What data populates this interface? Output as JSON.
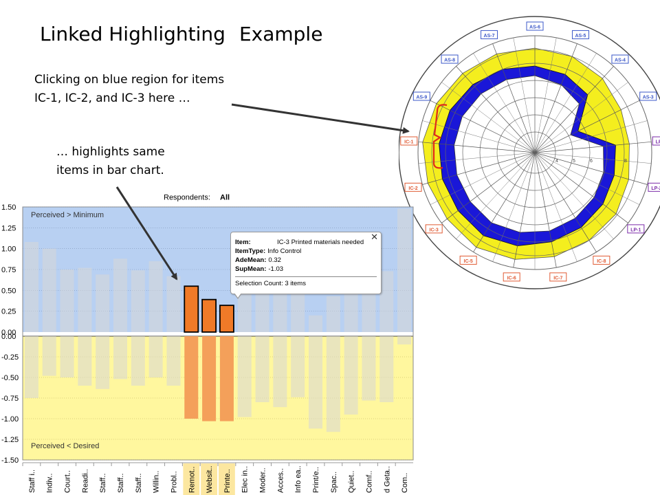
{
  "slide": {
    "title_part1": "Linked Highlighting",
    "title_part2": "Example",
    "callout_1_line1": "Clicking on blue region for items",
    "callout_1_line2": "IC-1, IC-2, and IC-3 here …",
    "callout_2_line1": "… highlights same",
    "callout_2_line2": "items in bar chart."
  },
  "respondents": {
    "label": "Respondents:",
    "value": "All"
  },
  "bar_chart": {
    "top_region_label": "Perceived > Minimum",
    "bottom_region_label": "Perceived < Desired",
    "colors": {
      "top_bg": "#b8d0f2",
      "bottom_bg": "#fff79e",
      "ghost_bar": "#d7d7d7",
      "highlight_bar": "#f07a28",
      "highlight_bar_light": "#f4a05a"
    }
  },
  "tooltip": {
    "item_label": "Item:",
    "item_value": "IC-3 Printed materials needed",
    "type_label": "ItemType:",
    "type_value": "Info Control",
    "ade_label": "AdeMean:",
    "ade_value": "0.32",
    "sup_label": "SupMean:",
    "sup_value": "-1.03",
    "selection_text": "Selection Count: 3 items",
    "close_glyph": "✕"
  },
  "chart_data": {
    "type": "bar",
    "ylim": [
      -1.5,
      1.5
    ],
    "yticks": [
      "1.50",
      "1.25",
      "1.00",
      "0.75",
      "0.50",
      "0.25",
      "0.00",
      "0.00",
      "-0.25",
      "-0.50",
      "-0.75",
      "-1.00",
      "-1.25",
      "-1.50"
    ],
    "categories": [
      "Staff i..",
      "Indiv..",
      "Court..",
      "Readi..",
      "Staff..",
      "Staff..",
      "Staff..",
      "Willin..",
      "Probl..",
      "Remot..",
      "Websit..",
      "Printe..",
      "Elec in..",
      "Moder..",
      "Acces..",
      "Info ea..",
      "Print/e..",
      "Spac..",
      "Quiet..",
      "Comf..",
      "d Geta..",
      "Com.."
    ],
    "series": [
      {
        "values": [
          1.08,
          1.0,
          0.75,
          0.77,
          0.69,
          0.88,
          0.74,
          0.85,
          0.67,
          0.55,
          0.39,
          0.32,
          0.5,
          0.5,
          0.5,
          0.5,
          0.2,
          0.43,
          0.5,
          0.5,
          0.73,
          1.48
        ]
      },
      {
        "values": [
          -0.75,
          -0.48,
          -0.5,
          -0.6,
          -0.64,
          -0.52,
          -0.6,
          -0.5,
          -0.6,
          -1.0,
          -1.03,
          -1.03,
          -0.98,
          -0.8,
          -0.86,
          -0.74,
          -1.12,
          -1.16,
          -0.95,
          -0.78,
          -0.8,
          -0.1
        ]
      }
    ],
    "highlighted": [
      "Remot..",
      "Websit..",
      "Printe.."
    ]
  },
  "radar": {
    "ring_labels": [
      "4",
      "5",
      "6",
      "7",
      "8"
    ],
    "labels": [
      {
        "text": "AS-6",
        "color": "#3b57c8"
      },
      {
        "text": "AS-5",
        "color": "#3b57c8"
      },
      {
        "text": "AS-4",
        "color": "#3b57c8"
      },
      {
        "text": "AS-3",
        "color": "#3b57c8"
      },
      {
        "text": "LP-3",
        "color": "#7a2aa8"
      },
      {
        "text": "LP-2",
        "color": "#7a2aa8"
      },
      {
        "text": "LP-1",
        "color": "#7a2aa8"
      },
      {
        "text": "IC-8",
        "color": "#e05a33"
      },
      {
        "text": "IC-7",
        "color": "#e05a33"
      },
      {
        "text": "IC-6",
        "color": "#e05a33"
      },
      {
        "text": "IC-5",
        "color": "#e05a33"
      },
      {
        "text": "IC-3",
        "color": "#e05a33"
      },
      {
        "text": "IC-2",
        "color": "#e05a33"
      },
      {
        "text": "IC-1",
        "color": "#e05a33"
      },
      {
        "text": "AS-9",
        "color": "#3b57c8"
      },
      {
        "text": "AS-8",
        "color": "#3b57c8"
      },
      {
        "text": "AS-7",
        "color": "#3b57c8"
      }
    ],
    "colors": {
      "desired": "#f4ee1e",
      "adequacy": "#1a17d8",
      "bracket": "#e02a1a"
    }
  }
}
